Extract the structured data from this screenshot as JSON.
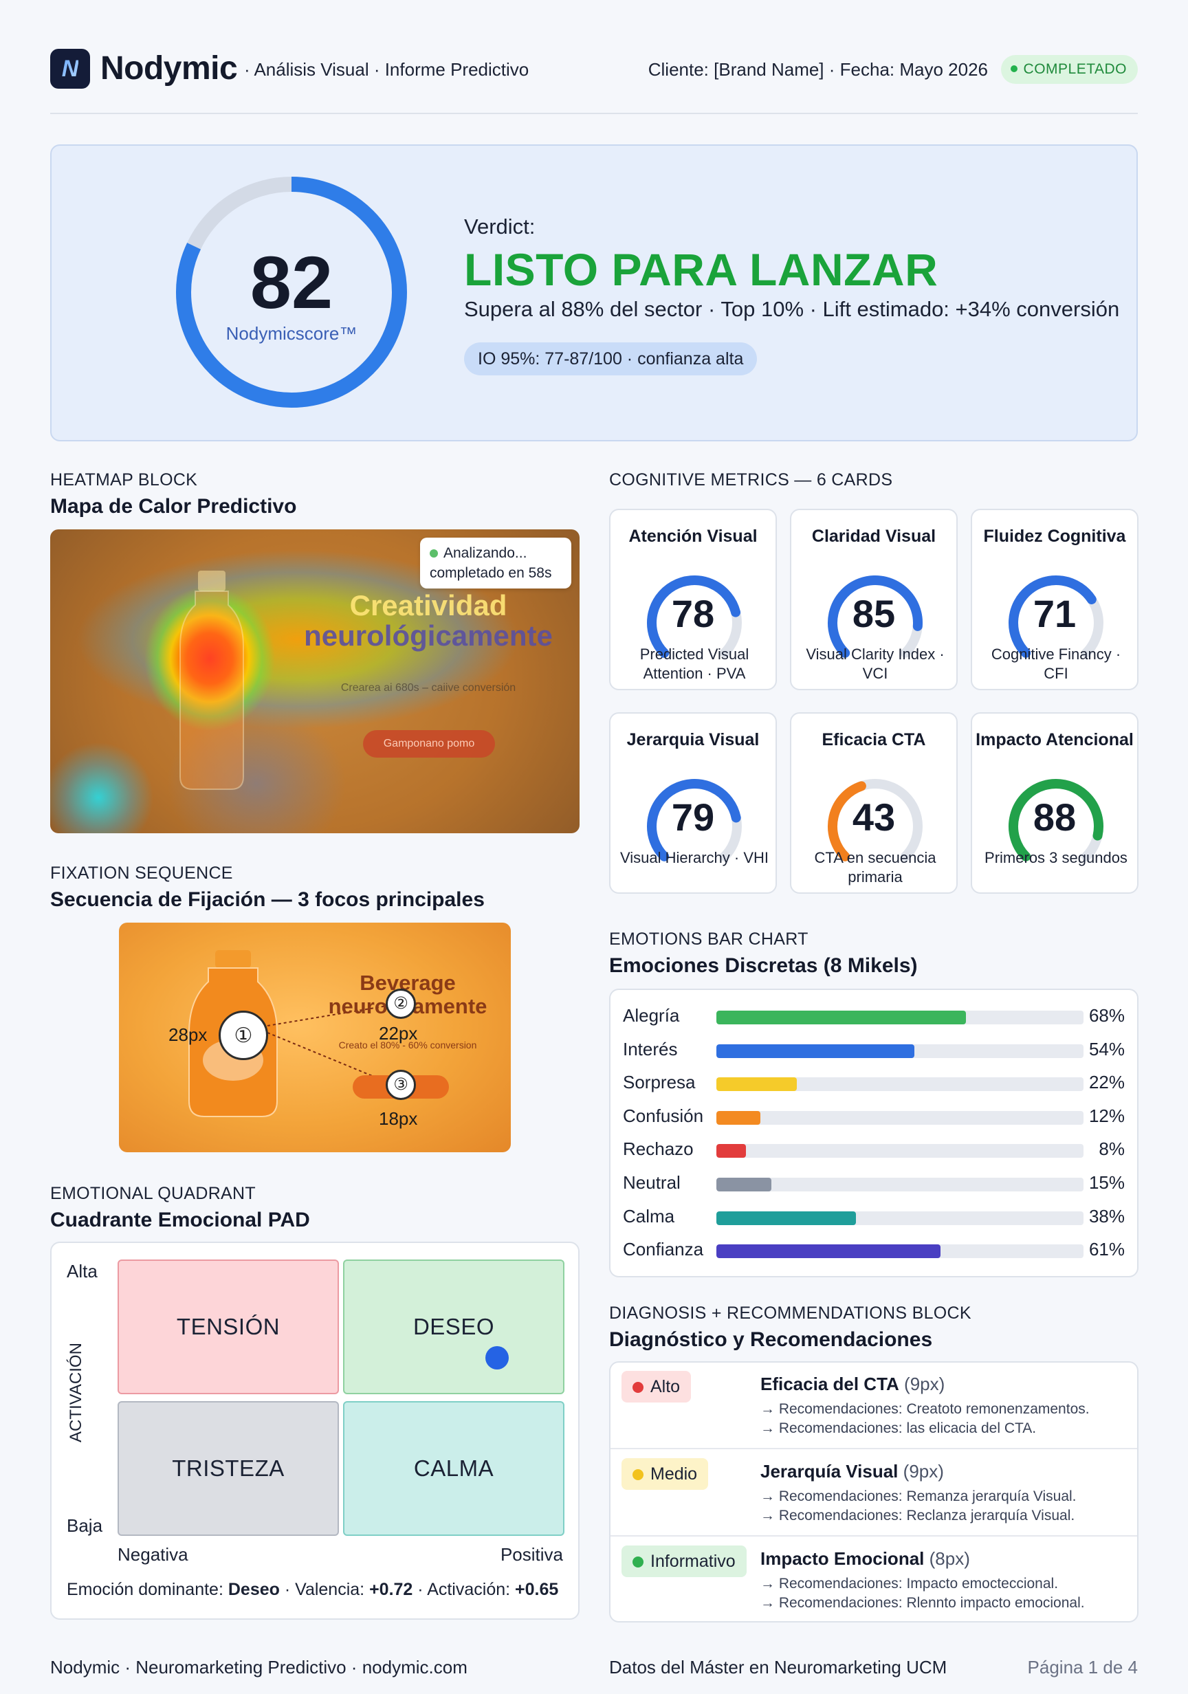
{
  "header": {
    "logo_letter": "N",
    "brand": "Nodymic",
    "subtitle": "· Análisis Visual · Informe Predictivo",
    "client": "Cliente: [Brand Name] · Fecha: Mayo 2026",
    "status": "COMPLETADO",
    "status_color": "#1f8a3b"
  },
  "score": {
    "value": "82",
    "value_fraction": 0.82,
    "label": "Nodymicscore™",
    "verdict_label": "Verdict:",
    "verdict": "LISTO PARA LANZAR",
    "summary": "Supera al 88% del sector · Top 10% · Lift estimado: +34% conversión",
    "confidence": "IO 95%: 77-87/100 · confianza alta",
    "accent": "#2f7de8",
    "verdict_color": "#1aa33a"
  },
  "heatmap": {
    "kicker": "HEATMAP BLOCK",
    "title": "Mapa de Calor Predictivo",
    "status_line1": "Analizando...",
    "status_line2": "completado en 58s",
    "ad_title1": "Creatividad",
    "ad_title2": "neurológicamente",
    "ad_sub": "Crearea ai 680s – caiive conversión",
    "ad_button": "Gamponano pomo"
  },
  "fixation": {
    "kicker": "FIXATION SEQUENCE",
    "title": "Secuencia de Fijación — 3 focos principales",
    "ad_title1": "Beverage",
    "ad_title2": "neurolo amente",
    "ad_sub": "Creato el 80% - 60% conversion",
    "foci": [
      {
        "n": "①",
        "label": "28px"
      },
      {
        "n": "②",
        "label": "22px"
      },
      {
        "n": "③",
        "label": "18px"
      }
    ]
  },
  "quadrant": {
    "kicker": "EMOTIONAL QUADRANT",
    "title": "Cuadrante Emocional PAD",
    "cells": [
      "TENSIÓN",
      "DESEO",
      "TRISTEZA",
      "CALMA"
    ],
    "y_high": "Alta",
    "y_low": "Baja",
    "y_axis": "ACTIVACIÓN",
    "x_neg": "Negativa",
    "x_pos": "Positiva",
    "foot_label": "Emoción dominante:",
    "dominant": "Deseo",
    "valence_label": "· Valencia:",
    "valence": "+0.72",
    "activation_label": "· Activación:",
    "activation": "+0.65"
  },
  "metrics": {
    "kicker": "COGNITIVE METRICS — 6 CARDS",
    "cards": [
      {
        "title": "Atención Visual",
        "value": "78",
        "fraction": 0.78,
        "sub": "Predicted Visual Attention · PVA",
        "color": "#2f6fe0"
      },
      {
        "title": "Claridad Visual",
        "value": "85",
        "fraction": 0.85,
        "sub": "Visual Clarity Index · VCI",
        "color": "#2f6fe0"
      },
      {
        "title": "Fluidez Cognitiva",
        "value": "71",
        "fraction": 0.71,
        "sub": "Cognitive Financy · CFI",
        "color": "#2f6fe0"
      },
      {
        "title": "Jerarquia Visual",
        "value": "79",
        "fraction": 0.79,
        "sub": "Visual Hierarchy · VHI",
        "color": "#2f6fe0"
      },
      {
        "title": "Eficacia CTA",
        "value": "43",
        "fraction": 0.43,
        "sub": "CTA en secuencia primaria",
        "color": "#f2801e"
      },
      {
        "title": "Impacto Atencional",
        "value": "88",
        "fraction": 0.88,
        "sub": "Primeros 3 segundos",
        "color": "#22a14a"
      }
    ]
  },
  "emotions": {
    "kicker": "EMOTIONS BAR CHART",
    "title": "Emociones Discretas (8 Mikels)",
    "items": [
      {
        "label": "Alegría",
        "value": 68,
        "text": "68%",
        "color": "#3bb55c"
      },
      {
        "label": "Interés",
        "value": 54,
        "text": "54%",
        "color": "#2f6fe0"
      },
      {
        "label": "Sorpresa",
        "value": 22,
        "text": "22%",
        "color": "#f5cb2a"
      },
      {
        "label": "Confusión",
        "value": 12,
        "text": "12%",
        "color": "#f38a21"
      },
      {
        "label": "Rechazo",
        "value": 8,
        "text": "8%",
        "color": "#e23c3c"
      },
      {
        "label": "Neutral",
        "value": 15,
        "text": "15%",
        "color": "#8a93a3"
      },
      {
        "label": "Calma",
        "value": 38,
        "text": "38%",
        "color": "#1f9e9a"
      },
      {
        "label": "Confianza",
        "value": 61,
        "text": "61%",
        "color": "#4a3fc2"
      }
    ]
  },
  "diagnosis": {
    "kicker": "DIAGNOSIS + RECOMMENDATIONS BLOCK",
    "title": "Diagnóstico y Recomendaciones",
    "rows": [
      {
        "tag": "Alto",
        "tag_bg": "#fde0e0",
        "dot": "#e23c3c",
        "title": "Eficacia del CTA",
        "size": "(9px)",
        "r1": "→ Recomendaciones: Creatoto remonenzamentos.",
        "r2": "→ Recomendaciones: las elicacia del CTA."
      },
      {
        "tag": "Medio",
        "tag_bg": "#fdf3c8",
        "dot": "#f2c21d",
        "title": "Jerarquía Visual",
        "size": "(9px)",
        "r1": "→ Recomendaciones: Remanza jerarquía Visual.",
        "r2": "→ Recomendaciones: Reclanza jerarquía Visual."
      },
      {
        "tag": "Informativo",
        "tag_bg": "#dcf3e0",
        "dot": "#2fb04f",
        "title": "Impacto Emocional",
        "size": "(8px)",
        "r1": "→ Recomendaciones: Impacto emocteccional.",
        "r2": "→ Recomendaciones: Rlennto impacto emocional."
      }
    ]
  },
  "footer": {
    "left": "Nodymic · Neuromarketing Predictivo · nodymic.com",
    "center": "Datos del Máster en Neuromarketing UCM",
    "right": "Página 1 de 4"
  }
}
